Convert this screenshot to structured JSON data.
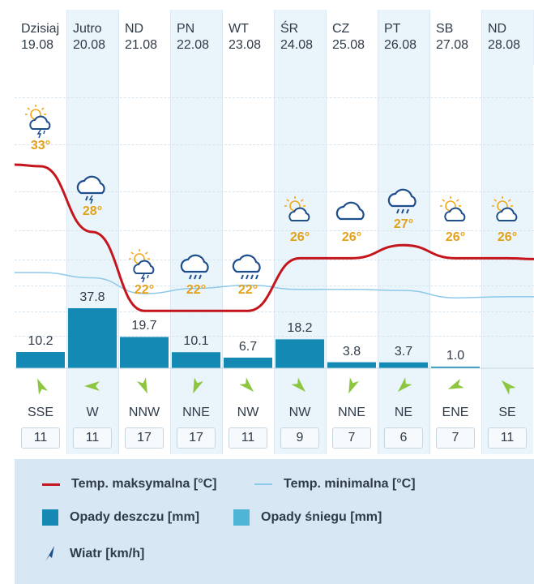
{
  "days": [
    {
      "name": "Dzisiaj",
      "date": "19.08",
      "temp_max": "33°",
      "icon": "sun-cloud-storm-icon",
      "rain": "10.2",
      "wind_dir": "SSE",
      "wind_speed": "11"
    },
    {
      "name": "Jutro",
      "date": "20.08",
      "temp_max": "28°",
      "icon": "cloud-storm-icon",
      "rain": "37.8",
      "wind_dir": "W",
      "wind_speed": "11"
    },
    {
      "name": "ND",
      "date": "21.08",
      "temp_max": "22°",
      "icon": "sun-cloud-storm-icon",
      "rain": "19.7",
      "wind_dir": "NNW",
      "wind_speed": "17"
    },
    {
      "name": "PN",
      "date": "22.08",
      "temp_max": "22°",
      "icon": "cloud-rain-icon",
      "rain": "10.1",
      "wind_dir": "NNE",
      "wind_speed": "17"
    },
    {
      "name": "WT",
      "date": "23.08",
      "temp_max": "22°",
      "icon": "cloud-heavy-rain-icon",
      "rain": "6.7",
      "wind_dir": "NW",
      "wind_speed": "11"
    },
    {
      "name": "ŚR",
      "date": "24.08",
      "temp_max": "26°",
      "icon": "sun-cloud-icon",
      "rain": "18.2",
      "wind_dir": "NW",
      "wind_speed": "9"
    },
    {
      "name": "CZ",
      "date": "25.08",
      "temp_max": "26°",
      "icon": "cloud-icon",
      "rain": "3.8",
      "wind_dir": "NNE",
      "wind_speed": "7"
    },
    {
      "name": "PT",
      "date": "26.08",
      "temp_max": "27°",
      "icon": "cloud-rain-icon",
      "rain": "3.7",
      "wind_dir": "NE",
      "wind_speed": "6"
    },
    {
      "name": "SB",
      "date": "27.08",
      "temp_max": "26°",
      "icon": "sun-cloud-icon",
      "rain": "1.0",
      "wind_dir": "ENE",
      "wind_speed": "7"
    },
    {
      "name": "ND",
      "date": "28.08",
      "temp_max": "26°",
      "icon": "sun-cloud-icon",
      "rain": "",
      "wind_dir": "SE",
      "wind_speed": "11"
    }
  ],
  "chart_data": {
    "type": "line",
    "categories": [
      "19.08",
      "20.08",
      "21.08",
      "22.08",
      "23.08",
      "24.08",
      "25.08",
      "26.08",
      "27.08",
      "28.08"
    ],
    "series": [
      {
        "name": "Temp. maksymalna [°C]",
        "values": [
          33,
          28,
          22,
          22,
          22,
          26,
          26,
          27,
          26,
          26
        ]
      },
      {
        "name": "Temp. minimalna [°C]",
        "values": [
          17.5,
          17,
          15.5,
          16,
          16.3,
          15.9,
          15.9,
          15.8,
          15.1,
          15.2
        ]
      },
      {
        "name": "Opady deszczu [mm]",
        "values": [
          10.2,
          37.8,
          19.7,
          10.1,
          6.7,
          18.2,
          3.8,
          3.7,
          1.0,
          0
        ]
      }
    ],
    "wind_bearing_deg": [
      337,
      270,
      157,
      202,
      135,
      135,
      202,
      225,
      247,
      315
    ]
  },
  "legend": {
    "max_label": "Temp. maksymalna [°C]",
    "min_label": "Temp. minimalna [°C]",
    "rain_label": "Opady deszczu [mm]",
    "snow_label": "Opady śniegu [mm]",
    "wind_label": "Wiatr [km/h]"
  },
  "colors": {
    "max_line": "#c4161c",
    "min_line": "#8ec9ea",
    "rain_bar": "#1389b4",
    "snow_bar": "#4fb5d6",
    "temp_text": "#e3a11b",
    "wind_arrow": "#8cc63f",
    "icon_line": "#1e4e8c",
    "sun": "#f2a81d"
  }
}
